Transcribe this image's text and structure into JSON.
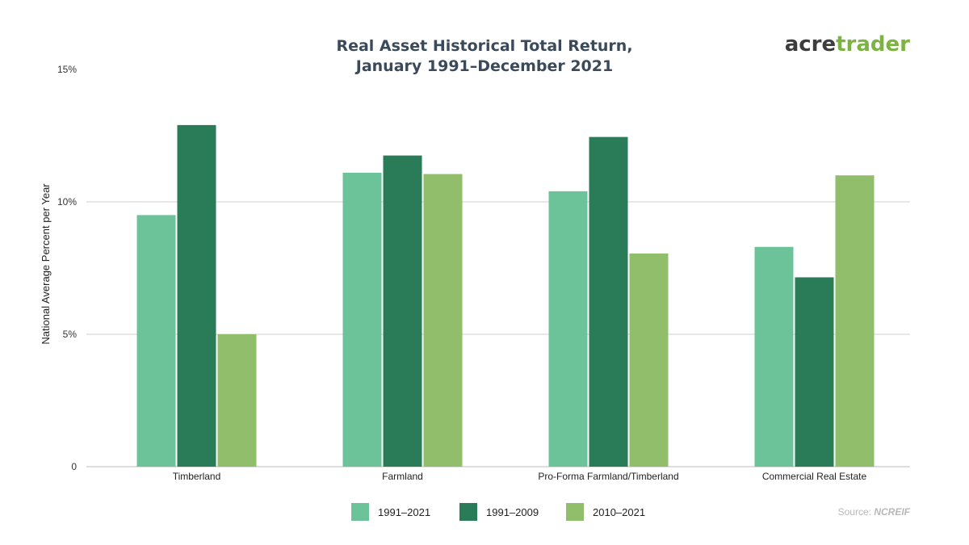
{
  "logo": {
    "part1": "acre",
    "part2": "trader",
    "color1": "#3d3d3d",
    "color2": "#7cb342"
  },
  "source": {
    "prefix": "Source: ",
    "name": "NCREIF"
  },
  "chart_data": {
    "type": "bar",
    "title_line1": "Real Asset Historical Total Return,",
    "title_line2": "January 1991–December 2021",
    "xlabel": "",
    "ylabel": "National Average Percent per Year",
    "ylim": [
      0,
      15
    ],
    "yticks": [
      0,
      5,
      10,
      15
    ],
    "ytick_labels": [
      "0",
      "5%",
      "10%",
      "15%"
    ],
    "grid": true,
    "legend_position": "bottom",
    "categories": [
      "Timberland",
      "Farmland",
      "Pro-Forma Farmland/Timberland",
      "Commercial Real Estate"
    ],
    "series": [
      {
        "name": "1991–2021",
        "color": "#6cc39a",
        "values": [
          9.5,
          11.1,
          10.4,
          8.3
        ]
      },
      {
        "name": "1991–2009",
        "color": "#2a7b58",
        "values": [
          12.9,
          11.75,
          12.45,
          7.15
        ]
      },
      {
        "name": "2010–2021",
        "color": "#90be6a",
        "values": [
          5.0,
          11.05,
          8.05,
          11.0
        ]
      }
    ]
  }
}
